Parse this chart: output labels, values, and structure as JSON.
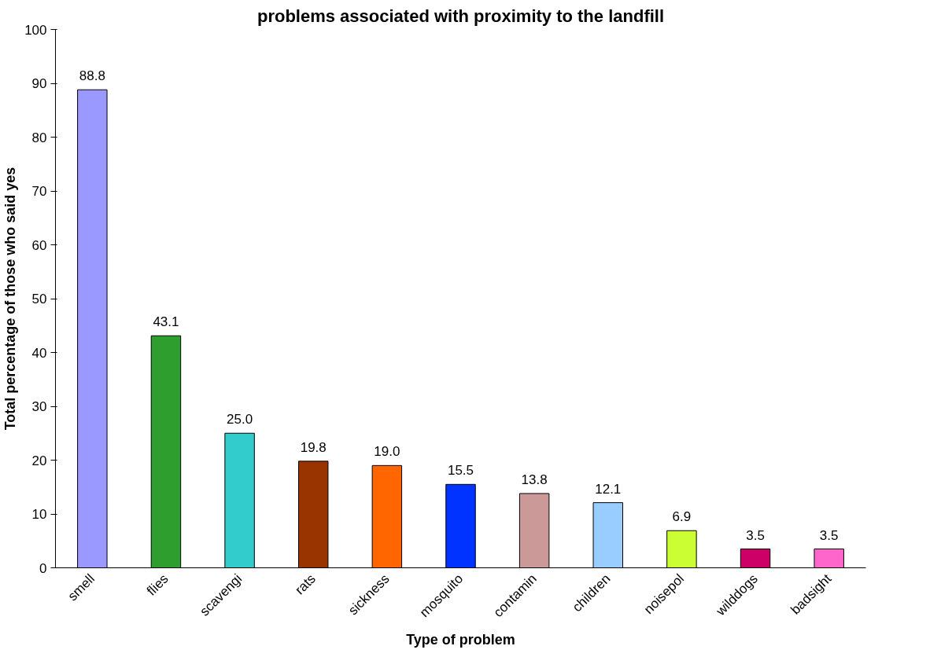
{
  "chart_data": {
    "type": "bar",
    "title": "problems associated with proximity to the landfill",
    "xlabel": "Type of problem",
    "ylabel": "Total percentage of those who said yes",
    "categories": [
      "smell",
      "flies",
      "scavengi",
      "rats",
      "sickness",
      "mosquito",
      "contamin",
      "children",
      "noisepol",
      "wilddogs",
      "badsight"
    ],
    "values": [
      88.8,
      43.1,
      25.0,
      19.8,
      19.0,
      15.5,
      13.8,
      12.1,
      6.9,
      3.5,
      3.5
    ],
    "value_labels": [
      "88.8",
      "43.1",
      "25.0",
      "19.8",
      "19.0",
      "15.5",
      "13.8",
      "12.1",
      "6.9",
      "3.5",
      "3.5"
    ],
    "colors": [
      "#9999ff",
      "#2e9e2e",
      "#33cccc",
      "#993300",
      "#ff6600",
      "#0033ff",
      "#cc9999",
      "#99ccff",
      "#ccff33",
      "#cc0066",
      "#ff66cc"
    ],
    "ylim": [
      0,
      100
    ],
    "yticks": [
      0,
      10,
      20,
      30,
      40,
      50,
      60,
      70,
      80,
      90,
      100
    ],
    "grid": false
  }
}
